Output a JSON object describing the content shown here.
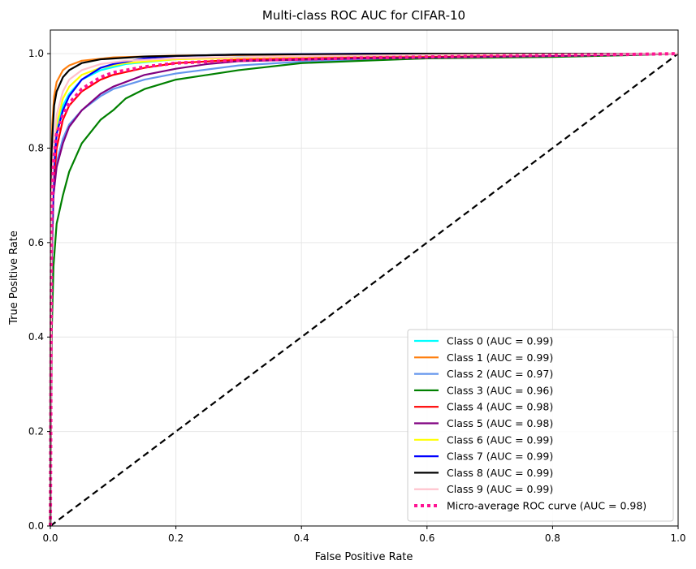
{
  "chart_data": {
    "type": "line",
    "title": "Multi-class ROC AUC for CIFAR-10",
    "xlabel": "False Positive Rate",
    "ylabel": "True Positive Rate",
    "xlim": [
      0.0,
      1.0
    ],
    "ylim": [
      0.0,
      1.05
    ],
    "xticks": [
      0.0,
      0.2,
      0.4,
      0.6,
      0.8,
      1.0
    ],
    "yticks": [
      0.0,
      0.2,
      0.4,
      0.6,
      0.8,
      1.0
    ],
    "xtick_labels": [
      "0.0",
      "0.2",
      "0.4",
      "0.6",
      "0.8",
      "1.0"
    ],
    "ytick_labels": [
      "0.0",
      "0.2",
      "0.4",
      "0.6",
      "0.8",
      "1.0"
    ],
    "grid": true,
    "legend_position": "lower-right",
    "diagonal": {
      "color": "#000000",
      "style": "dashed",
      "points": [
        [
          0,
          0
        ],
        [
          1,
          1
        ]
      ]
    },
    "series": [
      {
        "name": "Class 0 (AUC = 0.99)",
        "color": "#00ffff",
        "style": "solid",
        "points": [
          [
            0,
            0
          ],
          [
            0.002,
            0.6
          ],
          [
            0.005,
            0.76
          ],
          [
            0.01,
            0.84
          ],
          [
            0.02,
            0.89
          ],
          [
            0.03,
            0.915
          ],
          [
            0.05,
            0.945
          ],
          [
            0.08,
            0.965
          ],
          [
            0.12,
            0.978
          ],
          [
            0.2,
            0.988
          ],
          [
            0.3,
            0.993
          ],
          [
            0.5,
            0.996
          ],
          [
            0.8,
            0.999
          ],
          [
            1,
            1
          ]
        ]
      },
      {
        "name": "Class 1 (AUC = 0.99)",
        "color": "#ff7f0e",
        "style": "solid",
        "points": [
          [
            0,
            0
          ],
          [
            0.001,
            0.7
          ],
          [
            0.003,
            0.85
          ],
          [
            0.006,
            0.91
          ],
          [
            0.01,
            0.94
          ],
          [
            0.02,
            0.965
          ],
          [
            0.03,
            0.975
          ],
          [
            0.05,
            0.985
          ],
          [
            0.1,
            0.992
          ],
          [
            0.2,
            0.996
          ],
          [
            0.4,
            0.998
          ],
          [
            1,
            1
          ]
        ]
      },
      {
        "name": "Class 2 (AUC = 0.97)",
        "color": "#6495ed",
        "style": "solid",
        "points": [
          [
            0,
            0
          ],
          [
            0.002,
            0.55
          ],
          [
            0.005,
            0.7
          ],
          [
            0.01,
            0.77
          ],
          [
            0.02,
            0.82
          ],
          [
            0.03,
            0.85
          ],
          [
            0.05,
            0.88
          ],
          [
            0.08,
            0.91
          ],
          [
            0.1,
            0.925
          ],
          [
            0.15,
            0.945
          ],
          [
            0.2,
            0.958
          ],
          [
            0.3,
            0.975
          ],
          [
            0.4,
            0.983
          ],
          [
            0.5,
            0.987
          ],
          [
            0.7,
            0.993
          ],
          [
            1,
            1
          ]
        ]
      },
      {
        "name": "Class 3 (AUC = 0.96)",
        "color": "#008000",
        "style": "solid",
        "points": [
          [
            0,
            0
          ],
          [
            0.002,
            0.4
          ],
          [
            0.005,
            0.55
          ],
          [
            0.01,
            0.64
          ],
          [
            0.02,
            0.7
          ],
          [
            0.03,
            0.75
          ],
          [
            0.05,
            0.81
          ],
          [
            0.08,
            0.86
          ],
          [
            0.1,
            0.88
          ],
          [
            0.12,
            0.905
          ],
          [
            0.15,
            0.925
          ],
          [
            0.2,
            0.945
          ],
          [
            0.25,
            0.955
          ],
          [
            0.3,
            0.965
          ],
          [
            0.4,
            0.98
          ],
          [
            0.5,
            0.985
          ],
          [
            0.6,
            0.99
          ],
          [
            0.8,
            0.993
          ],
          [
            0.9,
            0.996
          ],
          [
            1,
            1
          ]
        ]
      },
      {
        "name": "Class 4 (AUC = 0.98)",
        "color": "#ff0000",
        "style": "solid",
        "points": [
          [
            0,
            0
          ],
          [
            0.002,
            0.6
          ],
          [
            0.005,
            0.72
          ],
          [
            0.01,
            0.8
          ],
          [
            0.02,
            0.86
          ],
          [
            0.03,
            0.89
          ],
          [
            0.05,
            0.92
          ],
          [
            0.08,
            0.945
          ],
          [
            0.1,
            0.955
          ],
          [
            0.15,
            0.97
          ],
          [
            0.2,
            0.98
          ],
          [
            0.3,
            0.987
          ],
          [
            0.5,
            0.992
          ],
          [
            0.8,
            0.996
          ],
          [
            1,
            1
          ]
        ]
      },
      {
        "name": "Class 5 (AUC = 0.98)",
        "color": "#800080",
        "style": "solid",
        "points": [
          [
            0,
            0
          ],
          [
            0.002,
            0.55
          ],
          [
            0.005,
            0.7
          ],
          [
            0.01,
            0.76
          ],
          [
            0.02,
            0.81
          ],
          [
            0.03,
            0.845
          ],
          [
            0.05,
            0.88
          ],
          [
            0.08,
            0.915
          ],
          [
            0.1,
            0.93
          ],
          [
            0.15,
            0.955
          ],
          [
            0.2,
            0.968
          ],
          [
            0.25,
            0.978
          ],
          [
            0.3,
            0.984
          ],
          [
            0.5,
            0.99
          ],
          [
            0.8,
            0.995
          ],
          [
            1,
            1
          ]
        ]
      },
      {
        "name": "Class 6 (AUC = 0.99)",
        "color": "#ffff00",
        "style": "solid",
        "points": [
          [
            0,
            0
          ],
          [
            0.002,
            0.65
          ],
          [
            0.005,
            0.78
          ],
          [
            0.01,
            0.85
          ],
          [
            0.02,
            0.905
          ],
          [
            0.03,
            0.93
          ],
          [
            0.05,
            0.955
          ],
          [
            0.08,
            0.97
          ],
          [
            0.12,
            0.98
          ],
          [
            0.2,
            0.988
          ],
          [
            0.4,
            0.994
          ],
          [
            0.7,
            0.998
          ],
          [
            1,
            1
          ]
        ]
      },
      {
        "name": "Class 7 (AUC = 0.99)",
        "color": "#0000ff",
        "style": "solid",
        "points": [
          [
            0,
            0
          ],
          [
            0.002,
            0.62
          ],
          [
            0.005,
            0.75
          ],
          [
            0.01,
            0.83
          ],
          [
            0.02,
            0.88
          ],
          [
            0.03,
            0.91
          ],
          [
            0.05,
            0.945
          ],
          [
            0.08,
            0.97
          ],
          [
            0.1,
            0.978
          ],
          [
            0.15,
            0.99
          ],
          [
            0.2,
            0.995
          ],
          [
            0.3,
            0.998
          ],
          [
            0.5,
            1.0
          ],
          [
            1,
            1
          ]
        ]
      },
      {
        "name": "Class 8 (AUC = 0.99)",
        "color": "#000000",
        "style": "solid",
        "points": [
          [
            0,
            0
          ],
          [
            0.001,
            0.7
          ],
          [
            0.003,
            0.82
          ],
          [
            0.006,
            0.89
          ],
          [
            0.01,
            0.92
          ],
          [
            0.02,
            0.95
          ],
          [
            0.03,
            0.965
          ],
          [
            0.05,
            0.98
          ],
          [
            0.08,
            0.988
          ],
          [
            0.15,
            0.994
          ],
          [
            0.3,
            0.998
          ],
          [
            0.6,
            1.0
          ],
          [
            1,
            1
          ]
        ]
      },
      {
        "name": "Class 9 (AUC = 0.99)",
        "color": "#ffc0cb",
        "style": "solid",
        "points": [
          [
            0,
            0
          ],
          [
            0.002,
            0.68
          ],
          [
            0.005,
            0.8
          ],
          [
            0.01,
            0.87
          ],
          [
            0.02,
            0.92
          ],
          [
            0.03,
            0.945
          ],
          [
            0.05,
            0.965
          ],
          [
            0.08,
            0.978
          ],
          [
            0.12,
            0.985
          ],
          [
            0.2,
            0.99
          ],
          [
            0.4,
            0.995
          ],
          [
            0.7,
            0.998
          ],
          [
            1,
            1
          ]
        ]
      },
      {
        "name": "Micro-average ROC curve (AUC = 0.98)",
        "color": "#ff1493",
        "style": "dotted",
        "points": [
          [
            0,
            0
          ],
          [
            0.002,
            0.66
          ],
          [
            0.005,
            0.77
          ],
          [
            0.01,
            0.83
          ],
          [
            0.02,
            0.87
          ],
          [
            0.03,
            0.895
          ],
          [
            0.05,
            0.925
          ],
          [
            0.08,
            0.95
          ],
          [
            0.1,
            0.96
          ],
          [
            0.15,
            0.972
          ],
          [
            0.2,
            0.98
          ],
          [
            0.3,
            0.986
          ],
          [
            0.5,
            0.991
          ],
          [
            0.7,
            0.995
          ],
          [
            0.9,
            0.998
          ],
          [
            1,
            1
          ]
        ]
      }
    ]
  }
}
